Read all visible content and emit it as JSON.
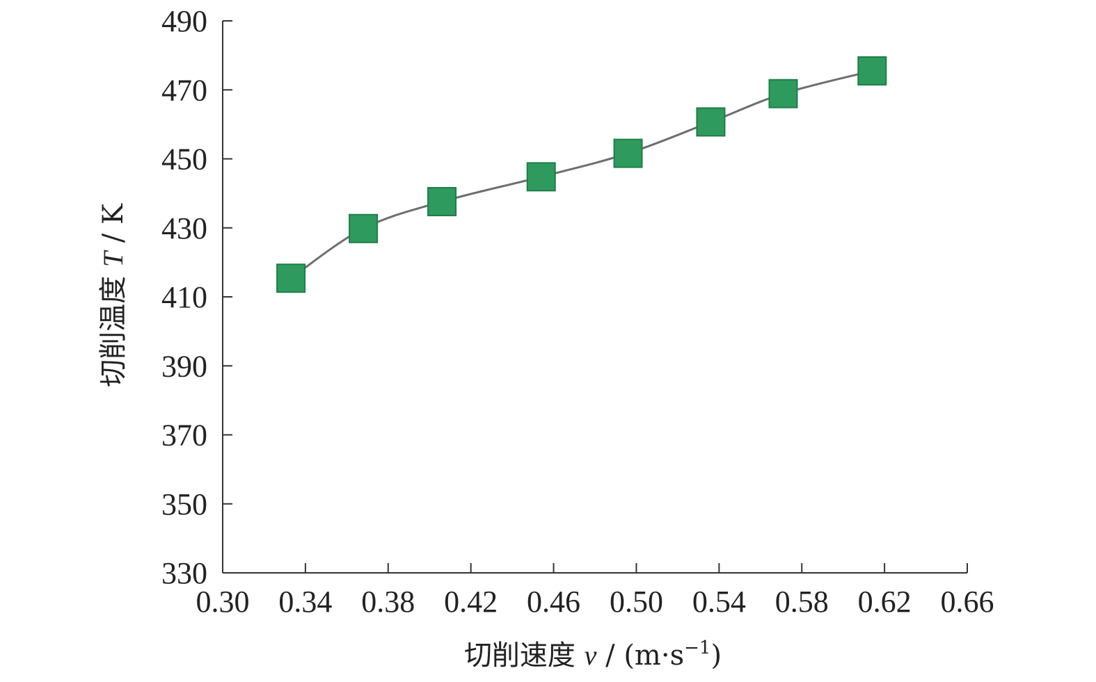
{
  "chart_data": {
    "type": "line",
    "xlabel": {
      "prefix": "切削速度 ",
      "var": "v",
      "unit_open": " / (m·s",
      "unit_exp": "−1",
      "unit_close": ")"
    },
    "ylabel": {
      "prefix": "切削温度 ",
      "var": "T",
      "unit": " / K"
    },
    "xlim": [
      0.3,
      0.66
    ],
    "ylim": [
      330,
      490
    ],
    "xticks": [
      "0.30",
      "0.34",
      "0.38",
      "0.42",
      "0.46",
      "0.50",
      "0.54",
      "0.58",
      "0.62",
      "0.66"
    ],
    "yticks": [
      "330",
      "350",
      "370",
      "390",
      "410",
      "430",
      "450",
      "470",
      "490"
    ],
    "grid": false,
    "series": [
      {
        "marker": "square",
        "color": "#2f9a5e",
        "line_color": "#6e6e6e",
        "x": [
          0.333,
          0.368,
          0.406,
          0.454,
          0.496,
          0.536,
          0.571,
          0.614
        ],
        "y": [
          415.4,
          429.8,
          437.6,
          444.8,
          451.6,
          460.7,
          468.9,
          475.5
        ]
      }
    ]
  }
}
